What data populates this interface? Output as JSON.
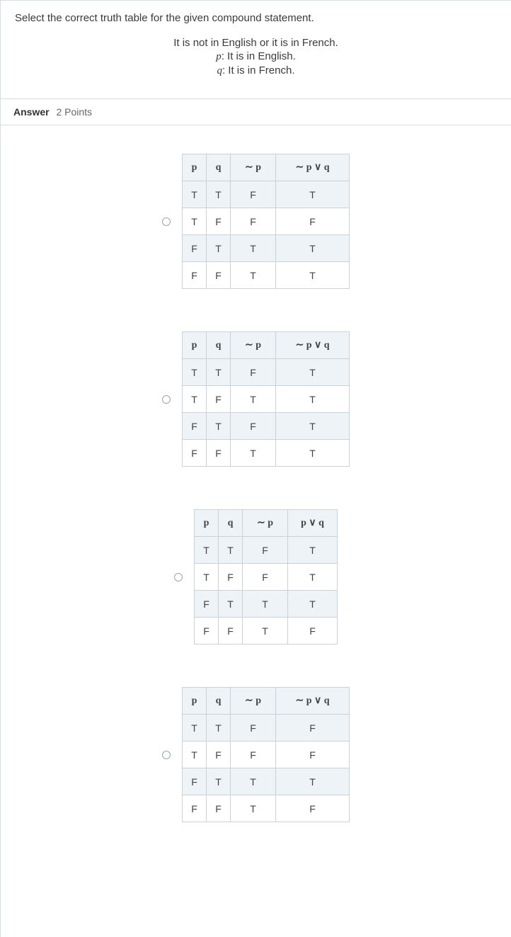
{
  "question": {
    "prompt": "Select the correct truth table for the given compound statement.",
    "compound": "It is not in English or it is in French.",
    "p_def_prefix": "p",
    "p_def_text": ": It is in English.",
    "q_def_prefix": "q",
    "q_def_text": ": It is in French."
  },
  "answer_bar": {
    "label": "Answer",
    "points": "2 Points"
  },
  "headers": {
    "p": "p",
    "q": "q",
    "not_p": "∼ p",
    "notp_or_q": "∼ p ∨ q",
    "p_or_q": "p ∨ q"
  },
  "options": [
    {
      "result_header_key": "notp_or_q",
      "result_wide": true,
      "rows": [
        {
          "p": "T",
          "q": "T",
          "np": "F",
          "r": "T",
          "shade": true
        },
        {
          "p": "T",
          "q": "F",
          "np": "F",
          "r": "F",
          "shade": false
        },
        {
          "p": "F",
          "q": "T",
          "np": "T",
          "r": "T",
          "shade": true
        },
        {
          "p": "F",
          "q": "F",
          "np": "T",
          "r": "T",
          "shade": false
        }
      ]
    },
    {
      "result_header_key": "notp_or_q",
      "result_wide": true,
      "rows": [
        {
          "p": "T",
          "q": "T",
          "np": "F",
          "r": "T",
          "shade": true
        },
        {
          "p": "T",
          "q": "F",
          "np": "T",
          "r": "T",
          "shade": false
        },
        {
          "p": "F",
          "q": "T",
          "np": "F",
          "r": "T",
          "shade": true
        },
        {
          "p": "F",
          "q": "F",
          "np": "T",
          "r": "T",
          "shade": false
        }
      ]
    },
    {
      "result_header_key": "p_or_q",
      "result_wide": false,
      "rows": [
        {
          "p": "T",
          "q": "T",
          "np": "F",
          "r": "T",
          "shade": true
        },
        {
          "p": "T",
          "q": "F",
          "np": "F",
          "r": "T",
          "shade": false
        },
        {
          "p": "F",
          "q": "T",
          "np": "T",
          "r": "T",
          "shade": true
        },
        {
          "p": "F",
          "q": "F",
          "np": "T",
          "r": "F",
          "shade": false
        }
      ]
    },
    {
      "result_header_key": "notp_or_q",
      "result_wide": true,
      "rows": [
        {
          "p": "T",
          "q": "T",
          "np": "F",
          "r": "F",
          "shade": true
        },
        {
          "p": "T",
          "q": "F",
          "np": "F",
          "r": "F",
          "shade": false
        },
        {
          "p": "F",
          "q": "T",
          "np": "T",
          "r": "T",
          "shade": true
        },
        {
          "p": "F",
          "q": "F",
          "np": "T",
          "r": "F",
          "shade": false
        }
      ]
    }
  ]
}
